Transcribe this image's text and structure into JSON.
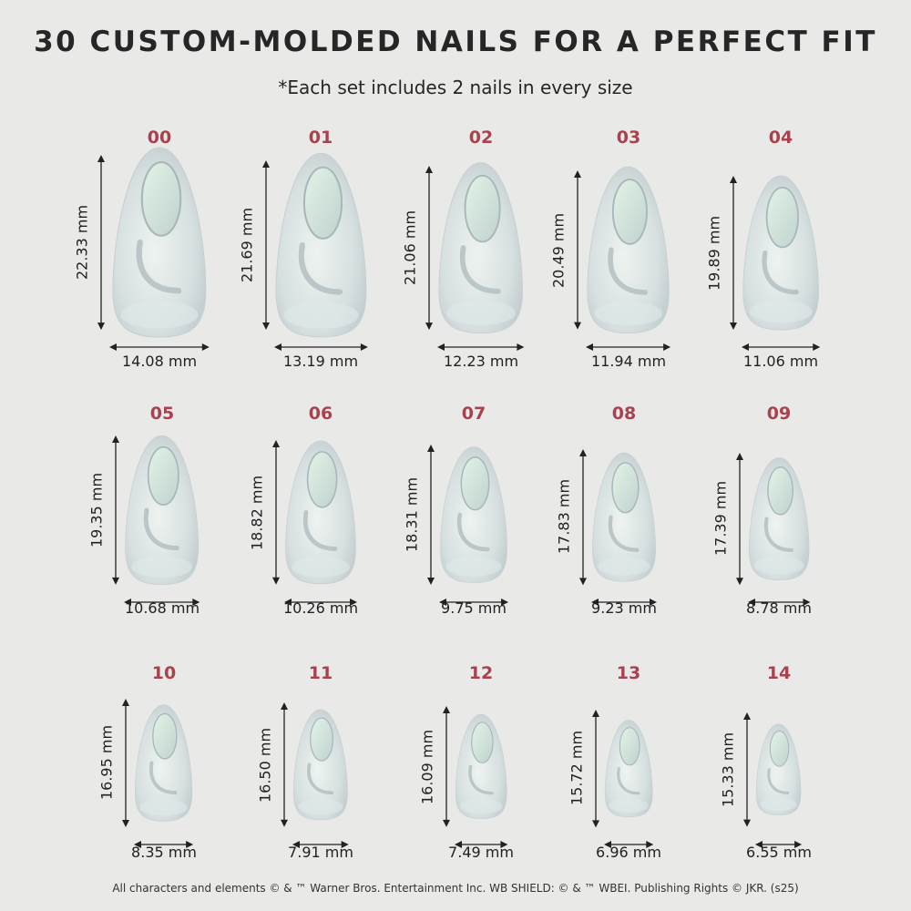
{
  "header": {
    "title": "30 CUSTOM-MOLDED NAILS FOR A PERFECT FIT",
    "subtitle": "*Each set includes 2 nails in every size"
  },
  "colors": {
    "background": "#e9e9e8",
    "size_label": "#a8424e",
    "text": "#262626"
  },
  "sizes": [
    {
      "label": "00",
      "length": "22.33 mm",
      "width": "14.08 mm",
      "length_mm": 22.33,
      "width_mm": 14.08
    },
    {
      "label": "01",
      "length": "21.69 mm",
      "width": "13.19 mm",
      "length_mm": 21.69,
      "width_mm": 13.19
    },
    {
      "label": "02",
      "length": "21.06 mm",
      "width": "12.23 mm",
      "length_mm": 21.06,
      "width_mm": 12.23
    },
    {
      "label": "03",
      "length": "20.49 mm",
      "width": "11.94 mm",
      "length_mm": 20.49,
      "width_mm": 11.94
    },
    {
      "label": "04",
      "length": "19.89 mm",
      "width": "11.06 mm",
      "length_mm": 19.89,
      "width_mm": 11.06
    },
    {
      "label": "05",
      "length": "19.35 mm",
      "width": "10.68 mm",
      "length_mm": 19.35,
      "width_mm": 10.68
    },
    {
      "label": "06",
      "length": "18.82 mm",
      "width": "10.26 mm",
      "length_mm": 18.82,
      "width_mm": 10.26
    },
    {
      "label": "07",
      "length": "18.31 mm",
      "width": "9.75 mm",
      "length_mm": 18.31,
      "width_mm": 9.75
    },
    {
      "label": "08",
      "length": "17.83 mm",
      "width": "9.23 mm",
      "length_mm": 17.83,
      "width_mm": 9.23
    },
    {
      "label": "09",
      "length": "17.39 mm",
      "width": "8.78 mm",
      "length_mm": 17.39,
      "width_mm": 8.78
    },
    {
      "label": "10",
      "length": "16.95 mm",
      "width": "8.35 mm",
      "length_mm": 16.95,
      "width_mm": 8.35
    },
    {
      "label": "11",
      "length": "16.50 mm",
      "width": "7.91 mm",
      "length_mm": 16.5,
      "width_mm": 7.91
    },
    {
      "label": "12",
      "length": "16.09 mm",
      "width": "7.49 mm",
      "length_mm": 16.09,
      "width_mm": 7.49
    },
    {
      "label": "13",
      "length": "15.72 mm",
      "width": "6.96 mm",
      "length_mm": 15.72,
      "width_mm": 6.96
    },
    {
      "label": "14",
      "length": "15.33 mm",
      "width": "6.55 mm",
      "length_mm": 15.33,
      "width_mm": 6.55
    }
  ],
  "footer": "All characters and elements © & ™ Warner Bros. Entertainment Inc. WB SHIELD: © & ™ WBEI. Publishing Rights © JKR. (s25)"
}
